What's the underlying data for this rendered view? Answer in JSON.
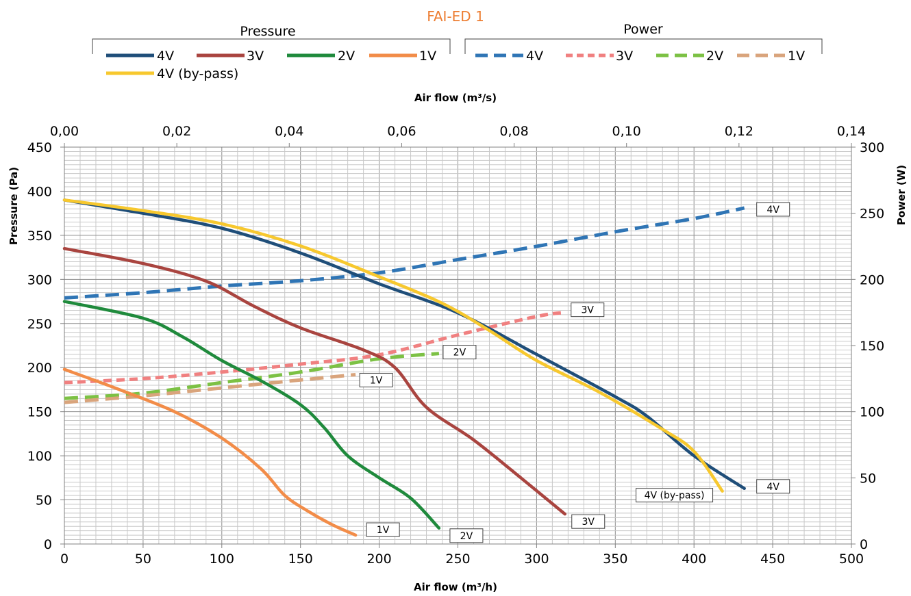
{
  "chart_data": {
    "type": "line",
    "title": "FAI-ED 1",
    "xlabel": "Air flow (m³/h)",
    "x2label": "Air flow (m³/s)",
    "ylabel": "Pressure (Pa)",
    "y2label": "Power (W)",
    "xlim": [
      0,
      500
    ],
    "x2lim": [
      0,
      0.14
    ],
    "ylim": [
      0,
      450
    ],
    "y2lim": [
      0,
      300
    ],
    "grid": true,
    "x_ticks": [
      "0",
      "50",
      "100",
      "150",
      "200",
      "250",
      "300",
      "350",
      "400",
      "450",
      "500"
    ],
    "x2_ticks": [
      "0,00",
      "0,02",
      "0,04",
      "0,06",
      "0,08",
      "0,10",
      "0,12",
      "0,14"
    ],
    "y_ticks": [
      "0",
      "50",
      "100",
      "150",
      "200",
      "250",
      "300",
      "350",
      "400",
      "450"
    ],
    "y2_ticks": [
      "0",
      "50",
      "100",
      "150",
      "200",
      "250",
      "300"
    ],
    "legend": {
      "pressure_title": "Pressure",
      "power_title": "Power",
      "placement": "top"
    },
    "pressure_series": [
      {
        "name": "4V",
        "color": "#1F4E79",
        "label": "4V",
        "points": [
          [
            0,
            390
          ],
          [
            50,
            375
          ],
          [
            100,
            358
          ],
          [
            150,
            330
          ],
          [
            200,
            295
          ],
          [
            250,
            262
          ],
          [
            300,
            215
          ],
          [
            350,
            167
          ],
          [
            370,
            145
          ],
          [
            400,
            100
          ],
          [
            432,
            63
          ]
        ]
      },
      {
        "name": "3V",
        "color": "#A9443F",
        "label": "3V",
        "points": [
          [
            0,
            335
          ],
          [
            50,
            318
          ],
          [
            90,
            298
          ],
          [
            120,
            270
          ],
          [
            150,
            245
          ],
          [
            190,
            220
          ],
          [
            210,
            200
          ],
          [
            230,
            155
          ],
          [
            260,
            118
          ],
          [
            290,
            75
          ],
          [
            318,
            34
          ]
        ]
      },
      {
        "name": "2V",
        "color": "#1F8A3C",
        "label": "2V",
        "points": [
          [
            0,
            275
          ],
          [
            50,
            256
          ],
          [
            75,
            235
          ],
          [
            100,
            208
          ],
          [
            125,
            185
          ],
          [
            150,
            158
          ],
          [
            165,
            132
          ],
          [
            180,
            100
          ],
          [
            200,
            75
          ],
          [
            220,
            52
          ],
          [
            238,
            18
          ]
        ]
      },
      {
        "name": "1V",
        "color": "#F28C48",
        "label": "1V",
        "points": [
          [
            0,
            198
          ],
          [
            35,
            175
          ],
          [
            70,
            150
          ],
          [
            100,
            120
          ],
          [
            125,
            85
          ],
          [
            140,
            55
          ],
          [
            155,
            37
          ],
          [
            170,
            22
          ],
          [
            185,
            10
          ]
        ]
      },
      {
        "name": "4V (by-pass)",
        "color": "#F7C82E",
        "label": "4V (by-pass)",
        "points": [
          [
            0,
            390
          ],
          [
            50,
            378
          ],
          [
            100,
            363
          ],
          [
            150,
            338
          ],
          [
            200,
            303
          ],
          [
            240,
            273
          ],
          [
            270,
            242
          ],
          [
            300,
            208
          ],
          [
            340,
            172
          ],
          [
            380,
            130
          ],
          [
            400,
            105
          ],
          [
            418,
            60
          ]
        ]
      }
    ],
    "power_series": [
      {
        "name": "4V",
        "color": "#2F75B5",
        "label": "4V",
        "points": [
          [
            0,
            186
          ],
          [
            50,
            190
          ],
          [
            100,
            195
          ],
          [
            150,
            199
          ],
          [
            200,
            205
          ],
          [
            250,
            215
          ],
          [
            300,
            225
          ],
          [
            350,
            236
          ],
          [
            400,
            246
          ],
          [
            432,
            254
          ]
        ]
      },
      {
        "name": "3V",
        "color": "#F08080",
        "label": "3V",
        "points": [
          [
            0,
            122
          ],
          [
            50,
            125
          ],
          [
            100,
            130
          ],
          [
            150,
            136
          ],
          [
            200,
            143
          ],
          [
            250,
            158
          ],
          [
            300,
            172
          ],
          [
            318,
            175
          ]
        ]
      },
      {
        "name": "2V",
        "color": "#7CC144",
        "label": "2V",
        "points": [
          [
            0,
            110
          ],
          [
            50,
            114
          ],
          [
            100,
            122
          ],
          [
            150,
            130
          ],
          [
            200,
            140
          ],
          [
            238,
            144
          ]
        ]
      },
      {
        "name": "1V",
        "color": "#D9A47C",
        "label": "1V",
        "points": [
          [
            0,
            107
          ],
          [
            50,
            112
          ],
          [
            100,
            118
          ],
          [
            150,
            124
          ],
          [
            185,
            128
          ]
        ]
      }
    ]
  }
}
